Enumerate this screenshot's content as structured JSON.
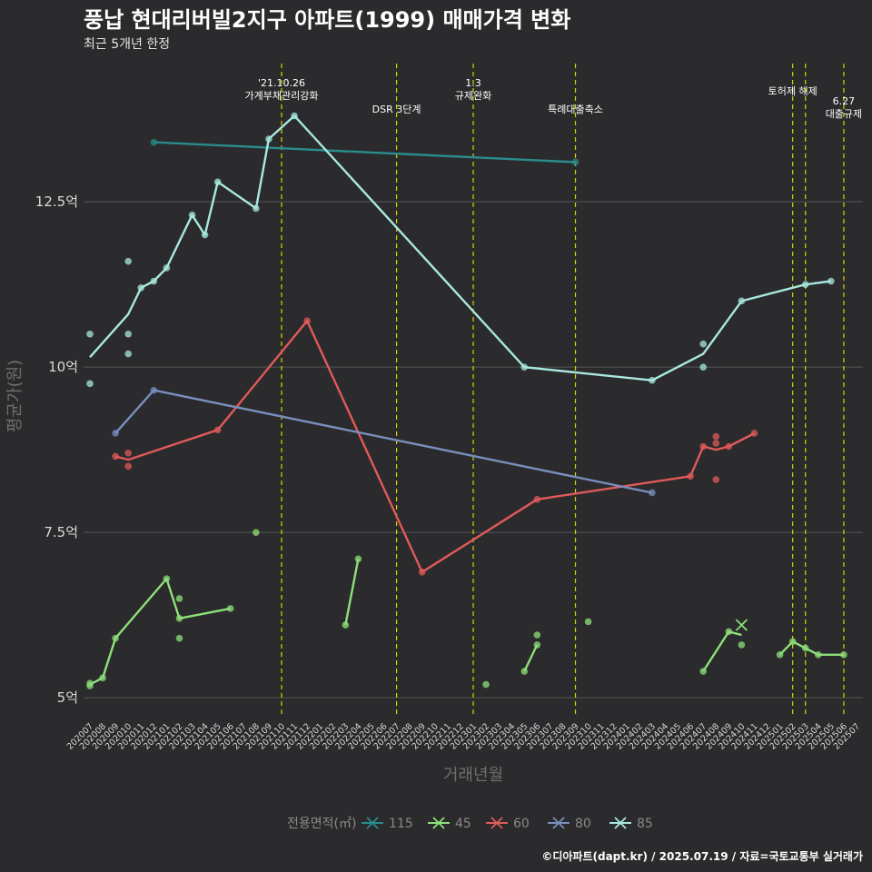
{
  "title": "풍납 현대리버빌2지구 아파트(1999) 매매가격 변화",
  "subtitle": "최근 5개년 한정",
  "caption": "©디아파트(dapt.kr) / 2025.07.19 / 자료=국토교통부 실거래가",
  "colors": {
    "background": "#2b2a2c",
    "grid": "#555555",
    "event_line": "#d6d400"
  },
  "chart_data": {
    "type": "line",
    "xlabel": "거래년월",
    "ylabel": "평균가(원)",
    "x_categories": [
      "202007",
      "202008",
      "202009",
      "202010",
      "202011",
      "202012",
      "202101",
      "202102",
      "202103",
      "202104",
      "202105",
      "202106",
      "202107",
      "202108",
      "202109",
      "202110",
      "202111",
      "202112",
      "202201",
      "202202",
      "202203",
      "202204",
      "202205",
      "202206",
      "202207",
      "202208",
      "202209",
      "202210",
      "202211",
      "202212",
      "202301",
      "202302",
      "202303",
      "202304",
      "202305",
      "202306",
      "202307",
      "202308",
      "202309",
      "202310",
      "202311",
      "202312",
      "202401",
      "202402",
      "202403",
      "202404",
      "202405",
      "202406",
      "202407",
      "202408",
      "202409",
      "202410",
      "202411",
      "202412",
      "202501",
      "202502",
      "202503",
      "202504",
      "202505",
      "202506",
      "202507"
    ],
    "y_ticks": [
      {
        "value": 5,
        "label": "5억"
      },
      {
        "value": 7.5,
        "label": "7.5억"
      },
      {
        "value": 10,
        "label": "10억"
      },
      {
        "value": 12.5,
        "label": "12.5억"
      }
    ],
    "ylim": [
      4.7,
      14.7
    ],
    "grid": true,
    "legend": {
      "title": "전용면적(㎡)",
      "position": "bottom"
    },
    "events": [
      {
        "x": "202110",
        "label": "'21.10.26\n가계부채관리강화"
      },
      {
        "x": "202207",
        "label": "DSR 3단계"
      },
      {
        "x": "202301",
        "label": "1.3\n규제완화"
      },
      {
        "x": "202309",
        "label": "특례대출축소"
      },
      {
        "x": "202502",
        "label": "토허제 해제"
      },
      {
        "x": "202503",
        "label": ""
      },
      {
        "x": "202506",
        "label": "6.27\n대출규제"
      }
    ],
    "series": [
      {
        "name": "115",
        "color": "#2a8c8c",
        "line": [
          [
            "202012",
            13.4
          ],
          [
            "202309",
            13.1
          ]
        ],
        "points": [
          [
            "202012",
            13.4
          ],
          [
            "202309",
            13.1
          ]
        ],
        "cross": []
      },
      {
        "name": "45",
        "color": "#8ee07a",
        "line": [
          [
            "202007",
            5.2
          ],
          [
            "202008",
            5.3
          ],
          [
            "202009",
            5.9
          ],
          [
            "202101",
            6.8
          ],
          [
            "202102",
            6.2
          ],
          [
            "202106",
            6.35
          ],
          null,
          [
            "202203",
            6.1
          ],
          [
            "202204",
            7.1
          ],
          null,
          [
            "202305",
            5.4
          ],
          [
            "202306",
            5.8
          ],
          null,
          [
            "202407",
            5.4
          ],
          [
            "202409",
            6.0
          ],
          [
            "202410",
            5.95
          ],
          null,
          [
            "202501",
            5.65
          ],
          [
            "202502",
            5.85
          ],
          [
            "202503",
            5.75
          ],
          [
            "202504",
            5.65
          ],
          [
            "202506",
            5.65
          ]
        ],
        "points": [
          [
            "202007",
            5.18
          ],
          [
            "202007",
            5.22
          ],
          [
            "202008",
            5.3
          ],
          [
            "202009",
            5.9
          ],
          [
            "202101",
            6.8
          ],
          [
            "202102",
            6.5
          ],
          [
            "202102",
            5.9
          ],
          [
            "202102",
            6.2
          ],
          [
            "202106",
            6.35
          ],
          [
            "202108",
            7.5
          ],
          [
            "202203",
            6.1
          ],
          [
            "202204",
            7.1
          ],
          [
            "202302",
            5.2
          ],
          [
            "202305",
            5.4
          ],
          [
            "202306",
            5.95
          ],
          [
            "202306",
            5.8
          ],
          [
            "202310",
            6.15
          ],
          [
            "202407",
            5.4
          ],
          [
            "202409",
            6.0
          ],
          [
            "202410",
            5.8
          ],
          [
            "202501",
            5.65
          ],
          [
            "202502",
            5.85
          ],
          [
            "202503",
            5.75
          ],
          [
            "202504",
            5.65
          ],
          [
            "202506",
            5.65
          ]
        ],
        "cross": [
          [
            "202410",
            6.1
          ]
        ]
      },
      {
        "name": "60",
        "color": "#e05a5a",
        "line": [
          [
            "202009",
            8.65
          ],
          [
            "202010",
            8.6
          ],
          [
            "202105",
            9.05
          ],
          [
            "202112",
            10.7
          ],
          [
            "202209",
            6.9
          ],
          [
            "202306",
            8.0
          ],
          [
            "202406",
            8.35
          ],
          [
            "202407",
            8.8
          ],
          [
            "202408",
            8.75
          ],
          [
            "202409",
            8.8
          ],
          [
            "202411",
            9.0
          ]
        ],
        "points": [
          [
            "202009",
            8.65
          ],
          [
            "202010",
            8.7
          ],
          [
            "202010",
            8.5
          ],
          [
            "202105",
            9.05
          ],
          [
            "202112",
            10.7
          ],
          [
            "202209",
            6.9
          ],
          [
            "202306",
            8.0
          ],
          [
            "202406",
            8.35
          ],
          [
            "202407",
            8.8
          ],
          [
            "202408",
            8.95
          ],
          [
            "202408",
            8.85
          ],
          [
            "202408",
            8.3
          ],
          [
            "202409",
            8.8
          ],
          [
            "202411",
            9.0
          ]
        ],
        "cross": []
      },
      {
        "name": "80",
        "color": "#7a8fbf",
        "line": [
          [
            "202009",
            9.0
          ],
          [
            "202012",
            9.65
          ],
          [
            "202403",
            8.1
          ]
        ],
        "points": [
          [
            "202009",
            9.0
          ],
          [
            "202012",
            9.65
          ],
          [
            "202403",
            8.1
          ]
        ],
        "cross": []
      },
      {
        "name": "85",
        "color": "#a8e8e0",
        "line": [
          [
            "202007",
            10.15
          ],
          [
            "202010",
            10.8
          ],
          [
            "202011",
            11.2
          ],
          [
            "202012",
            11.3
          ],
          [
            "202101",
            11.5
          ],
          [
            "202103",
            12.3
          ],
          [
            "202104",
            12.0
          ],
          [
            "202105",
            12.8
          ],
          [
            "202108",
            12.4
          ],
          [
            "202109",
            13.45
          ],
          [
            "202111",
            13.8
          ],
          [
            "202305",
            10.0
          ],
          [
            "202403",
            9.8
          ],
          [
            "202407",
            10.2
          ],
          [
            "202410",
            11.0
          ],
          [
            "202503",
            11.25
          ],
          [
            "202505",
            11.3
          ]
        ],
        "points": [
          [
            "202007",
            10.5
          ],
          [
            "202007",
            9.75
          ],
          [
            "202010",
            11.6
          ],
          [
            "202010",
            10.5
          ],
          [
            "202010",
            10.2
          ],
          [
            "202011",
            11.2
          ],
          [
            "202012",
            11.3
          ],
          [
            "202101",
            11.5
          ],
          [
            "202103",
            12.3
          ],
          [
            "202104",
            12.0
          ],
          [
            "202105",
            12.8
          ],
          [
            "202108",
            12.4
          ],
          [
            "202109",
            13.45
          ],
          [
            "202111",
            13.8
          ],
          [
            "202305",
            10.0
          ],
          [
            "202403",
            9.8
          ],
          [
            "202407",
            10.35
          ],
          [
            "202407",
            10.0
          ],
          [
            "202410",
            11.0
          ],
          [
            "202503",
            11.25
          ],
          [
            "202505",
            11.3
          ]
        ],
        "cross": []
      }
    ]
  }
}
